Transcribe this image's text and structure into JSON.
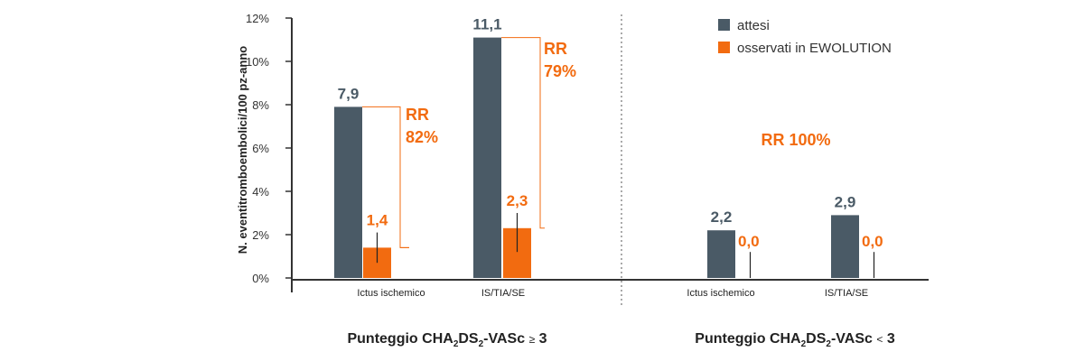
{
  "colors": {
    "expected": "#4a5a66",
    "observed": "#f26b10",
    "axis": "#333333"
  },
  "legend": {
    "expected": "attesi",
    "observed": "osservati in EWOLUTION"
  },
  "chart_data": {
    "type": "bar",
    "ylabel": "N. eventitromboembolici/100 pz-anno",
    "ylim": [
      0,
      12
    ],
    "yticks": [
      "0%",
      "2%",
      "4%",
      "6%",
      "8%",
      "10%",
      "12%"
    ],
    "series": [
      {
        "name": "attesi",
        "values": [
          7.9,
          11.1,
          2.2,
          2.9
        ],
        "labels": [
          "7,9",
          "11,1",
          "2,2",
          "2,9"
        ]
      },
      {
        "name": "osservati in EWOLUTION",
        "values": [
          1.4,
          2.3,
          0.0,
          0.0
        ],
        "labels": [
          "1,4",
          "2,3",
          "0,0",
          "0,0"
        ],
        "error_low": [
          0.7,
          1.2,
          0.0,
          0.0
        ],
        "error_high": [
          2.1,
          3.0,
          1.2,
          1.2
        ]
      }
    ],
    "categories": [
      "Ictus ischemico",
      "IS/TIA/SE",
      "Ictus ischemico",
      "IS/TIA/SE"
    ],
    "groups": [
      {
        "label_main": "Punteggio CHA",
        "sub1": "2",
        "mid": "DS",
        "sub2": "2",
        "tail": "-VASc ",
        "op": "≥",
        "num": " 3"
      },
      {
        "label_main": "Punteggio CHA",
        "sub1": "2",
        "mid": "DS",
        "sub2": "2",
        "tail": "-VASc ",
        "op": "<",
        "num": " 3"
      }
    ],
    "annotations": [
      {
        "line1": "RR",
        "line2": "82%"
      },
      {
        "line1": "RR",
        "line2": "79%"
      },
      {
        "line1": "RR 100%"
      }
    ]
  }
}
